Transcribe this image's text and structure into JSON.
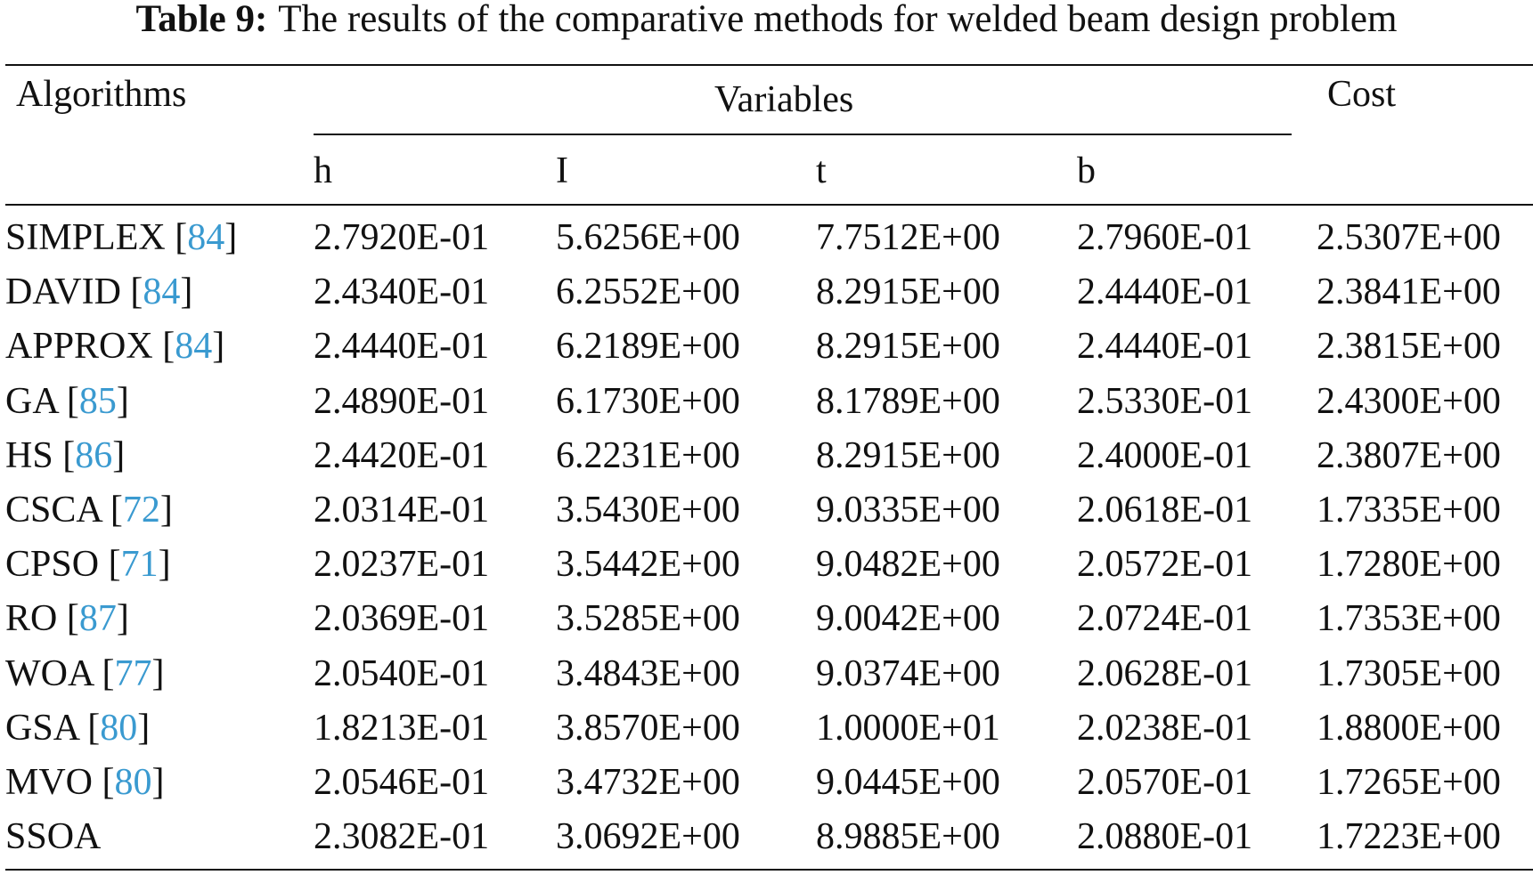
{
  "caption": {
    "label": "Table 9:",
    "text": "The results of the comparative methods for welded beam design problem"
  },
  "headers": {
    "algorithms": "Algorithms",
    "variables": "Variables",
    "cost": "Cost",
    "h": "h",
    "l": "I",
    "t": "t",
    "b": "b"
  },
  "rows": [
    {
      "name": "SIMPLEX",
      "ref": "84",
      "h": "2.7920E-01",
      "l": "5.6256E+00",
      "t": "7.7512E+00",
      "b": "2.7960E-01",
      "cost": "2.5307E+00"
    },
    {
      "name": "DAVID",
      "ref": "84",
      "h": "2.4340E-01",
      "l": "6.2552E+00",
      "t": "8.2915E+00",
      "b": "2.4440E-01",
      "cost": "2.3841E+00"
    },
    {
      "name": "APPROX",
      "ref": "84",
      "h": "2.4440E-01",
      "l": "6.2189E+00",
      "t": "8.2915E+00",
      "b": "2.4440E-01",
      "cost": "2.3815E+00"
    },
    {
      "name": "GA",
      "ref": "85",
      "h": "2.4890E-01",
      "l": "6.1730E+00",
      "t": "8.1789E+00",
      "b": "2.5330E-01",
      "cost": "2.4300E+00"
    },
    {
      "name": "HS",
      "ref": "86",
      "h": "2.4420E-01",
      "l": "6.2231E+00",
      "t": "8.2915E+00",
      "b": "2.4000E-01",
      "cost": "2.3807E+00"
    },
    {
      "name": "CSCA",
      "ref": "72",
      "h": "2.0314E-01",
      "l": "3.5430E+00",
      "t": "9.0335E+00",
      "b": "2.0618E-01",
      "cost": "1.7335E+00"
    },
    {
      "name": "CPSO",
      "ref": "71",
      "h": "2.0237E-01",
      "l": "3.5442E+00",
      "t": "9.0482E+00",
      "b": "2.0572E-01",
      "cost": "1.7280E+00"
    },
    {
      "name": "RO",
      "ref": "87",
      "h": "2.0369E-01",
      "l": "3.5285E+00",
      "t": "9.0042E+00",
      "b": "2.0724E-01",
      "cost": "1.7353E+00"
    },
    {
      "name": "WOA",
      "ref": "77",
      "h": "2.0540E-01",
      "l": "3.4843E+00",
      "t": "9.0374E+00",
      "b": "2.0628E-01",
      "cost": "1.7305E+00"
    },
    {
      "name": "GSA",
      "ref": "80",
      "h": "1.8213E-01",
      "l": "3.8570E+00",
      "t": "1.0000E+01",
      "b": "2.0238E-01",
      "cost": "1.8800E+00"
    },
    {
      "name": "MVO",
      "ref": "80",
      "h": "2.0546E-01",
      "l": "3.4732E+00",
      "t": "9.0445E+00",
      "b": "2.0570E-01",
      "cost": "1.7265E+00"
    },
    {
      "name": "SSOA",
      "ref": "",
      "h": "2.3082E-01",
      "l": "3.0692E+00",
      "t": "8.9885E+00",
      "b": "2.0880E-01",
      "cost": "1.7223E+00"
    }
  ]
}
